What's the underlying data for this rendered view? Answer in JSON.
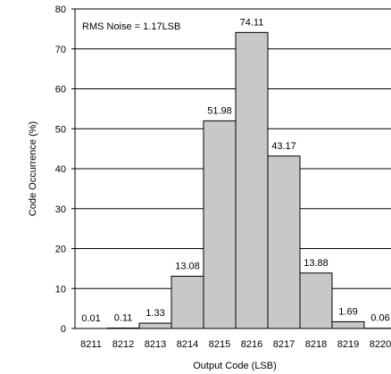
{
  "chart_data": {
    "type": "bar",
    "categories": [
      "8211",
      "8212",
      "8213",
      "8214",
      "8215",
      "8216",
      "8217",
      "8218",
      "8219",
      "8220"
    ],
    "values": [
      0.01,
      0.11,
      1.33,
      13.08,
      51.98,
      74.11,
      43.17,
      13.88,
      1.69,
      0.06
    ],
    "data_labels": [
      "0.01",
      "0.11",
      "1.33",
      "13.08",
      "51.98",
      "74.11",
      "43.17",
      "13.88",
      "1.69",
      "0.06"
    ],
    "xlabel": "Output Code (LSB)",
    "ylabel": "Code Occurrence (%)",
    "ylim": [
      0,
      80
    ],
    "yticks": [
      "0",
      "10",
      "20",
      "30",
      "40",
      "50",
      "60",
      "70",
      "80"
    ],
    "annotation": "RMS Noise = 1.17LSB",
    "grid": "horizontal",
    "bar_color": "#c8c8c8",
    "bar_edge_color": "#000000"
  }
}
